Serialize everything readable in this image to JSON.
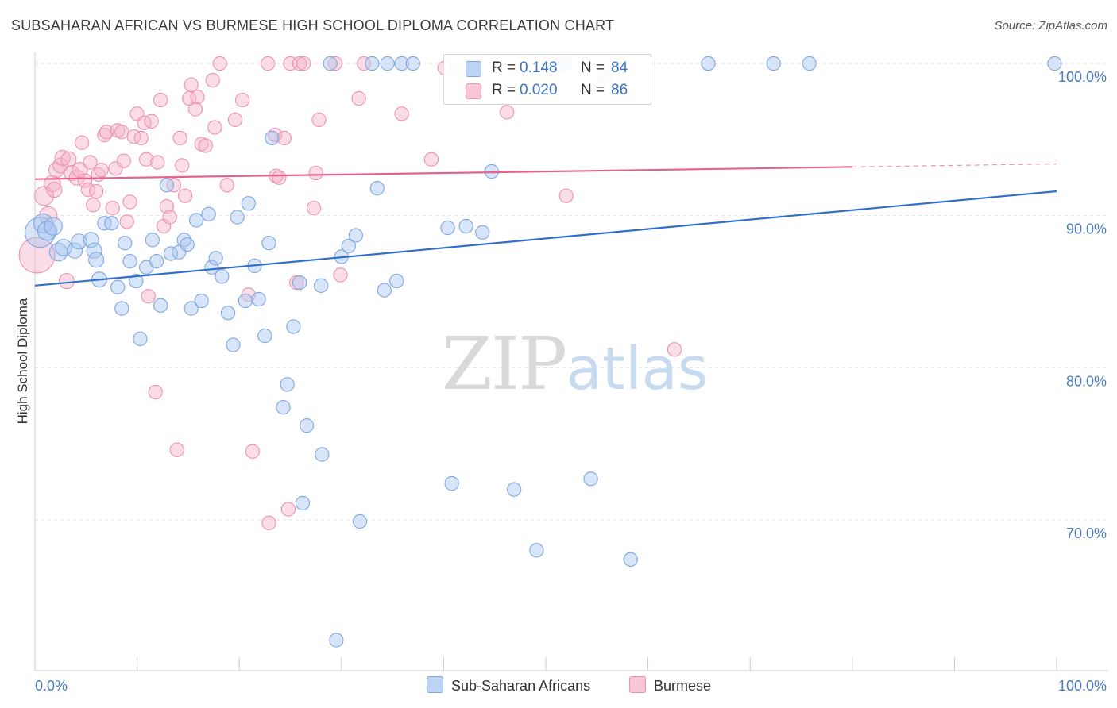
{
  "header": {
    "title": "SUBSAHARAN AFRICAN VS BURMESE HIGH SCHOOL DIPLOMA CORRELATION CHART",
    "source": "Source: ZipAtlas.com"
  },
  "watermark": {
    "zip": "ZIP",
    "atlas": "atlas"
  },
  "legend": {
    "rows": [
      {
        "r_label": "R =",
        "r_value": "0.148",
        "n_label": "N =",
        "n_value": "84"
      },
      {
        "r_label": "R =",
        "r_value": "0.020",
        "n_label": "N =",
        "n_value": "86"
      }
    ]
  },
  "bottom_legend": {
    "series1": "Sub-Saharan Africans",
    "series2": "Burmese"
  },
  "colors": {
    "blue_fill": "#a9c6ef",
    "blue_stroke": "#7ea7e0",
    "blue_line": "#2f6fc9",
    "pink_fill": "#f5b3c8",
    "pink_stroke": "#ee92b0",
    "pink_line": "#e4628f",
    "tick_text": "#4a7ac0",
    "grid": "#e2e2e2"
  },
  "chart_data": {
    "type": "scatter",
    "title": "SUBSAHARAN AFRICAN VS BURMESE HIGH SCHOOL DIPLOMA CORRELATION CHART",
    "xlabel": "",
    "ylabel": "High School Diploma",
    "xlim": [
      0,
      100
    ],
    "ylim": [
      60.4,
      101.8
    ],
    "x_tick_labels": [
      "0.0%",
      "100.0%"
    ],
    "y_ticks": [
      {
        "value": 100,
        "label": "100.0%"
      },
      {
        "value": 90,
        "label": "90.0%"
      },
      {
        "value": 80,
        "label": "80.0%"
      },
      {
        "value": 70,
        "label": "70.0%"
      }
    ],
    "grid": true,
    "legend_position": "top-center",
    "series": [
      {
        "name": "Sub-Saharan Africans",
        "R": 0.148,
        "N": 84,
        "trend": {
          "x": [
            0,
            100
          ],
          "y": [
            85.4,
            91.6
          ]
        },
        "points": [
          [
            0.5,
            88.9,
            2.2
          ],
          [
            0.8,
            89.5,
            1.4
          ],
          [
            1.2,
            89.0,
            1.4
          ],
          [
            1.8,
            89.3,
            1.3
          ],
          [
            2.3,
            87.6,
            1.3
          ],
          [
            2.8,
            87.9,
            1.2
          ],
          [
            3.9,
            87.7,
            1.1
          ],
          [
            4.3,
            88.3,
            1.1
          ],
          [
            5.5,
            88.4,
            1.1
          ],
          [
            5.8,
            87.7,
            1.1
          ],
          [
            6.0,
            87.1,
            1.1
          ],
          [
            6.3,
            85.8,
            1.1
          ],
          [
            6.8,
            89.5,
            1.0
          ],
          [
            7.5,
            89.5,
            1.0
          ],
          [
            8.1,
            85.3,
            1.0
          ],
          [
            8.5,
            83.9,
            1.0
          ],
          [
            8.8,
            88.2,
            1.0
          ],
          [
            9.3,
            87.0,
            1.0
          ],
          [
            9.9,
            85.7,
            1.0
          ],
          [
            10.3,
            81.9,
            1.0
          ],
          [
            10.9,
            86.6,
            1.0
          ],
          [
            11.5,
            88.4,
            1.0
          ],
          [
            11.9,
            87.0,
            1.0
          ],
          [
            12.3,
            84.1,
            1.0
          ],
          [
            12.9,
            92.0,
            1.0
          ],
          [
            13.3,
            87.5,
            1.0
          ],
          [
            14.1,
            87.6,
            1.0
          ],
          [
            14.6,
            88.4,
            1.0
          ],
          [
            14.9,
            88.1,
            1.0
          ],
          [
            15.3,
            83.9,
            1.0
          ],
          [
            15.8,
            89.7,
            1.0
          ],
          [
            16.3,
            84.4,
            1.0
          ],
          [
            17.0,
            90.1,
            1.0
          ],
          [
            17.3,
            86.6,
            1.0
          ],
          [
            17.7,
            87.2,
            1.0
          ],
          [
            18.3,
            86.0,
            1.0
          ],
          [
            18.9,
            83.6,
            1.0
          ],
          [
            19.4,
            81.5,
            1.0
          ],
          [
            19.8,
            89.9,
            1.0
          ],
          [
            20.6,
            84.4,
            1.0
          ],
          [
            20.9,
            90.8,
            1.0
          ],
          [
            21.5,
            86.7,
            1.0
          ],
          [
            21.9,
            84.5,
            1.0
          ],
          [
            22.5,
            82.1,
            1.0
          ],
          [
            22.9,
            88.2,
            1.0
          ],
          [
            23.2,
            95.1,
            1.0
          ],
          [
            24.3,
            77.4,
            1.0
          ],
          [
            24.7,
            78.9,
            1.0
          ],
          [
            25.3,
            82.7,
            1.0
          ],
          [
            25.9,
            85.6,
            1.0
          ],
          [
            26.2,
            71.1,
            1.0
          ],
          [
            26.6,
            76.2,
            1.0
          ],
          [
            28.0,
            85.4,
            1.0
          ],
          [
            28.1,
            74.3,
            1.0
          ],
          [
            28.9,
            100.0,
            1.0
          ],
          [
            29.5,
            62.1,
            1.0
          ],
          [
            30.0,
            87.3,
            1.0
          ],
          [
            30.7,
            88.0,
            1.0
          ],
          [
            31.4,
            88.7,
            1.0
          ],
          [
            31.8,
            69.9,
            1.0
          ],
          [
            33.0,
            100.0,
            1.0
          ],
          [
            33.5,
            91.8,
            1.0
          ],
          [
            34.2,
            85.1,
            1.0
          ],
          [
            34.5,
            100.0,
            1.0
          ],
          [
            35.4,
            85.7,
            1.0
          ],
          [
            35.9,
            100.0,
            1.0
          ],
          [
            37.0,
            100.0,
            1.0
          ],
          [
            40.4,
            89.2,
            1.0
          ],
          [
            40.8,
            72.4,
            1.0
          ],
          [
            42.2,
            89.3,
            1.0
          ],
          [
            43.8,
            88.9,
            1.0
          ],
          [
            44.7,
            92.9,
            1.0
          ],
          [
            46.9,
            72.0,
            1.0
          ],
          [
            49.1,
            68.0,
            1.0
          ],
          [
            51.8,
            100.0,
            1.0
          ],
          [
            54.4,
            72.7,
            1.0
          ],
          [
            55.8,
            99.1,
            1.0
          ],
          [
            58.3,
            67.4,
            1.0
          ],
          [
            65.9,
            100.0,
            1.0
          ],
          [
            72.3,
            100.0,
            1.0
          ],
          [
            75.8,
            100.0,
            1.0
          ],
          [
            99.8,
            100.0,
            1.0
          ]
        ]
      },
      {
        "name": "Burmese",
        "R": 0.02,
        "N": 86,
        "trend": {
          "x": [
            0,
            80
          ],
          "y": [
            92.4,
            93.2
          ],
          "dashed_to_x": 100,
          "dashed_to_y": 93.4
        },
        "points": [
          [
            0.2,
            87.4,
            2.6
          ],
          [
            0.9,
            91.3,
            1.4
          ],
          [
            1.3,
            90.0,
            1.3
          ],
          [
            1.7,
            92.1,
            1.2
          ],
          [
            1.9,
            91.7,
            1.1
          ],
          [
            2.1,
            93.0,
            1.1
          ],
          [
            2.5,
            93.3,
            1.1
          ],
          [
            2.7,
            93.8,
            1.1
          ],
          [
            3.1,
            85.7,
            1.1
          ],
          [
            3.3,
            93.7,
            1.1
          ],
          [
            3.6,
            92.8,
            1.1
          ],
          [
            4.1,
            92.5,
            1.1
          ],
          [
            4.4,
            93.0,
            1.1
          ],
          [
            4.6,
            94.8,
            1.0
          ],
          [
            4.9,
            92.3,
            1.0
          ],
          [
            5.2,
            91.7,
            1.0
          ],
          [
            5.4,
            93.5,
            1.0
          ],
          [
            5.7,
            90.7,
            1.0
          ],
          [
            6.0,
            91.6,
            1.0
          ],
          [
            6.2,
            92.7,
            1.0
          ],
          [
            6.5,
            93.0,
            1.0
          ],
          [
            6.8,
            95.3,
            1.0
          ],
          [
            7.0,
            95.5,
            1.0
          ],
          [
            7.6,
            90.5,
            1.0
          ],
          [
            7.9,
            93.1,
            1.0
          ],
          [
            8.1,
            95.6,
            1.0
          ],
          [
            8.5,
            95.5,
            1.0
          ],
          [
            8.7,
            93.6,
            1.0
          ],
          [
            9.0,
            89.6,
            1.0
          ],
          [
            9.3,
            90.9,
            1.0
          ],
          [
            9.7,
            95.2,
            1.0
          ],
          [
            10.0,
            96.7,
            1.0
          ],
          [
            10.4,
            95.1,
            1.0
          ],
          [
            10.7,
            96.1,
            1.0
          ],
          [
            10.9,
            93.7,
            1.0
          ],
          [
            11.1,
            84.7,
            1.0
          ],
          [
            11.4,
            96.2,
            1.0
          ],
          [
            11.8,
            78.4,
            1.0
          ],
          [
            12.0,
            93.5,
            1.0
          ],
          [
            12.3,
            97.6,
            1.0
          ],
          [
            12.6,
            89.3,
            1.0
          ],
          [
            12.9,
            90.6,
            1.0
          ],
          [
            13.2,
            89.9,
            1.0
          ],
          [
            13.6,
            92.0,
            1.0
          ],
          [
            13.9,
            74.6,
            1.0
          ],
          [
            14.2,
            95.1,
            1.0
          ],
          [
            14.4,
            93.3,
            1.0
          ],
          [
            14.7,
            91.3,
            1.0
          ],
          [
            15.1,
            97.7,
            1.0
          ],
          [
            15.3,
            98.6,
            1.0
          ],
          [
            15.7,
            97.0,
            1.0
          ],
          [
            15.9,
            97.8,
            1.0
          ],
          [
            16.3,
            94.7,
            1.0
          ],
          [
            16.7,
            94.6,
            1.0
          ],
          [
            17.4,
            98.9,
            1.0
          ],
          [
            17.6,
            95.8,
            1.0
          ],
          [
            18.1,
            100.0,
            1.0
          ],
          [
            18.8,
            92.0,
            1.0
          ],
          [
            19.6,
            96.3,
            1.0
          ],
          [
            20.3,
            97.6,
            1.0
          ],
          [
            20.9,
            84.8,
            1.0
          ],
          [
            21.3,
            74.5,
            1.0
          ],
          [
            22.8,
            100.0,
            1.0
          ],
          [
            22.9,
            69.8,
            1.0
          ],
          [
            23.5,
            95.3,
            1.0
          ],
          [
            23.6,
            92.6,
            1.0
          ],
          [
            23.9,
            92.5,
            1.0
          ],
          [
            24.4,
            95.1,
            1.0
          ],
          [
            24.8,
            70.7,
            1.0
          ],
          [
            25.0,
            100.0,
            1.0
          ],
          [
            25.6,
            85.6,
            1.0
          ],
          [
            25.9,
            100.0,
            1.0
          ],
          [
            26.3,
            100.0,
            1.0
          ],
          [
            27.3,
            90.5,
            1.0
          ],
          [
            27.5,
            92.8,
            1.0
          ],
          [
            27.8,
            96.3,
            1.0
          ],
          [
            29.4,
            100.0,
            1.0
          ],
          [
            29.9,
            86.1,
            1.0
          ],
          [
            31.7,
            97.7,
            1.0
          ],
          [
            32.2,
            100.0,
            1.0
          ],
          [
            35.9,
            96.7,
            1.0
          ],
          [
            38.8,
            93.7,
            1.0
          ],
          [
            40.1,
            99.7,
            1.0
          ],
          [
            46.2,
            96.8,
            1.0
          ],
          [
            52.0,
            91.3,
            1.0
          ],
          [
            62.6,
            81.2,
            1.0
          ]
        ]
      }
    ]
  }
}
